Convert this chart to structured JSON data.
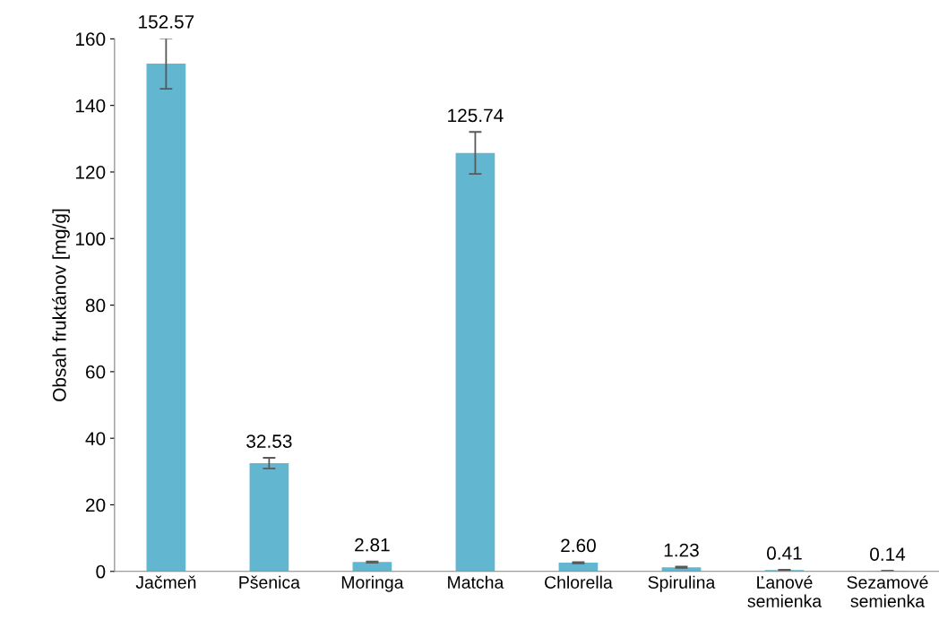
{
  "chart_data": {
    "type": "bar",
    "ylabel": "Obsah fruktánov [mg/g]",
    "categories": [
      "Jačmeň",
      "Pšenica",
      "Moringa",
      "Matcha",
      "Chlorella",
      "Spirulina",
      "Ľanové\nsemienka",
      "Sezamové\nsemienka"
    ],
    "values": [
      152.57,
      32.53,
      2.81,
      125.74,
      2.6,
      1.23,
      0.41,
      0.14
    ],
    "errors": [
      7.6,
      1.6,
      0.2,
      6.3,
      0.2,
      0.2,
      0.1,
      0.05
    ],
    "color": "#63b6cf",
    "ylim": [
      0,
      160
    ],
    "yticks": [
      0,
      20,
      40,
      60,
      80,
      100,
      120,
      140,
      160
    ],
    "value_labels": [
      "152.57",
      "32.53",
      "2.81",
      "125.74",
      "2.60",
      "1.23",
      "0.41",
      "0.14"
    ],
    "grid": false,
    "legend": false
  }
}
